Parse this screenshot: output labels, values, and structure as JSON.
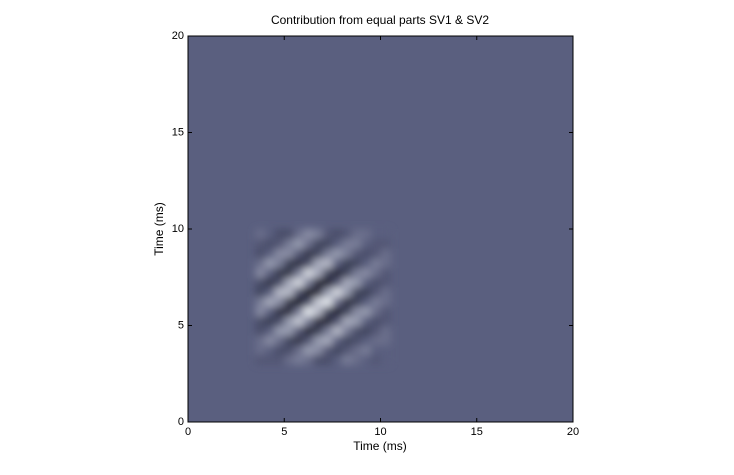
{
  "chart_data": {
    "type": "heatmap",
    "title": "Contribution from equal parts SV1 & SV2",
    "xlabel": "Time (ms)",
    "ylabel": "Time (ms)",
    "xlim": [
      0,
      20
    ],
    "ylim": [
      0,
      20
    ],
    "xticks": [
      0,
      5,
      10,
      15,
      20
    ],
    "yticks": [
      0,
      5,
      10,
      15,
      20
    ],
    "x": [
      3.75,
      4.25,
      4.75,
      5.25,
      5.75,
      6.25,
      6.75,
      7.25,
      7.75,
      8.25,
      8.75,
      9.25,
      9.75,
      10.25
    ],
    "y": [
      3.25,
      3.75,
      4.25,
      4.75,
      5.25,
      5.75,
      6.25,
      6.75,
      7.25,
      7.75,
      8.25,
      8.75,
      9.25,
      9.75
    ],
    "z": [
      [
        -1,
        -1,
        -1,
        1,
        2,
        1,
        -2,
        -2,
        0,
        2,
        1,
        0,
        -1,
        0
      ],
      [
        1,
        0,
        -2,
        -2,
        1,
        4,
        3,
        -1,
        -3,
        -1,
        1,
        2,
        0,
        0
      ],
      [
        1,
        3,
        1,
        -3,
        -5,
        -1,
        4,
        5,
        0,
        -3,
        -2,
        0,
        1,
        1
      ],
      [
        -2,
        0,
        4,
        4,
        -1,
        -7,
        -4,
        2,
        6,
        2,
        -2,
        -3,
        -1,
        1
      ],
      [
        -2,
        -4,
        -2,
        4,
        7,
        2,
        -6,
        -7,
        -1,
        5,
        4,
        0,
        -2,
        -1
      ],
      [
        3,
        0,
        -6,
        -6,
        2,
        9,
        6,
        -3,
        -8,
        -3,
        3,
        4,
        1,
        -1
      ],
      [
        2,
        5,
        3,
        -5,
        -9,
        -2,
        7,
        9,
        1,
        -6,
        -4,
        0,
        2,
        1
      ],
      [
        -3,
        0,
        6,
        6,
        -2,
        -10,
        -6,
        4,
        8,
        4,
        -3,
        -4,
        -1,
        1
      ],
      [
        -2,
        -5,
        -2,
        5,
        8,
        2,
        -7,
        -8,
        -1,
        5,
        4,
        0,
        -2,
        -1
      ],
      [
        3,
        0,
        -5,
        -5,
        2,
        8,
        5,
        -3,
        -7,
        -3,
        2,
        3,
        1,
        -1
      ],
      [
        1,
        4,
        2,
        -4,
        -6,
        -2,
        5,
        6,
        0,
        -4,
        -3,
        0,
        2,
        1
      ],
      [
        -2,
        0,
        3,
        3,
        -1,
        -5,
        -3,
        2,
        4,
        2,
        -1,
        -2,
        -1,
        1
      ],
      [
        -1,
        -2,
        -1,
        2,
        4,
        1,
        -3,
        -3,
        0,
        2,
        2,
        0,
        -1,
        -1
      ],
      [
        1,
        0,
        -2,
        -2,
        1,
        3,
        2,
        -1,
        -2,
        -1,
        1,
        1,
        0,
        0
      ]
    ],
    "zlim": [
      -10,
      10
    ],
    "colormap": [
      "#08080f",
      "#5a5f7f",
      "#f6f9fb"
    ]
  }
}
